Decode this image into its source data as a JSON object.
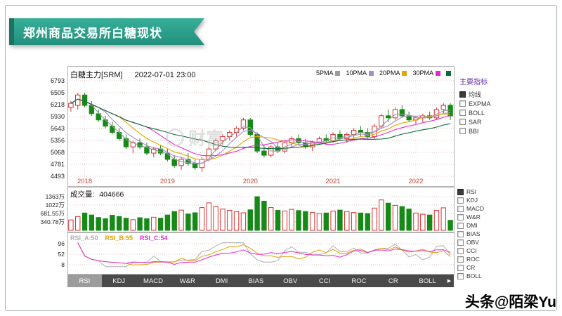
{
  "banner": {
    "title": "郑州商品交易所白糖现状"
  },
  "credit": "头条@陌梁Yu",
  "watermark": "财富",
  "icons": {
    "tab_scroll_right": "▶"
  },
  "indicator_panel": {
    "title": "主要指标",
    "items": [
      {
        "label": "均线",
        "checked": true
      },
      {
        "label": "EXPMA",
        "checked": false
      },
      {
        "label": "BOLL",
        "checked": false
      },
      {
        "label": "SAR",
        "checked": false
      },
      {
        "label": "BBI",
        "checked": false
      }
    ]
  },
  "oscillator_panel": {
    "items": [
      {
        "label": "RSI",
        "checked": true
      },
      {
        "label": "KDJ",
        "checked": false
      },
      {
        "label": "MACD",
        "checked": false
      },
      {
        "label": "W&R",
        "checked": false
      },
      {
        "label": "DMI",
        "checked": false
      },
      {
        "label": "BIAS",
        "checked": false
      },
      {
        "label": "OBV",
        "checked": false
      },
      {
        "label": "CCI",
        "checked": false
      },
      {
        "label": "ROC",
        "checked": false
      },
      {
        "label": "CR",
        "checked": false
      },
      {
        "label": "BOLL",
        "checked": false
      }
    ]
  },
  "tabs": {
    "selected": "RSI",
    "items": [
      "RSI",
      "KDJ",
      "MACD",
      "W&R",
      "DMI",
      "BIAS",
      "OBV",
      "CCI",
      "ROC",
      "CR",
      "BOLL"
    ]
  },
  "chart_data": {
    "type": "candlestick",
    "title": "白糖主力[SRM]",
    "datetime": "2022-07-01 23:00",
    "y_ticks": [
      6793,
      6505,
      6218,
      5930,
      5643,
      5356,
      5068,
      4781,
      4493
    ],
    "x_year_labels": [
      {
        "label": "2018",
        "index": 2
      },
      {
        "label": "2019",
        "index": 14
      },
      {
        "label": "2020",
        "index": 26
      },
      {
        "label": "2021",
        "index": 38
      },
      {
        "label": "2022",
        "index": 50
      }
    ],
    "ma_legend": [
      {
        "label": "5PMA",
        "color": "#9a9a9a",
        "draw_period": 3
      },
      {
        "label": "10PMA",
        "color": "#a58ccf",
        "draw_period": 5
      },
      {
        "label": "20PMA",
        "color": "#e0a800",
        "draw_period": 8
      },
      {
        "label": "30PMA",
        "color": "#e02ad0",
        "draw_period": 12
      },
      {
        "label": "",
        "color": "#0a6b3c",
        "draw_period": 20
      }
    ],
    "ohlc": [
      [
        6150,
        6300,
        6050,
        6250
      ],
      [
        6200,
        6500,
        6100,
        6450
      ],
      [
        6450,
        6505,
        6150,
        6200
      ],
      [
        6200,
        6300,
        5950,
        6000
      ],
      [
        6000,
        6100,
        5800,
        5850
      ],
      [
        5850,
        5950,
        5650,
        5700
      ],
      [
        5700,
        5800,
        5500,
        5550
      ],
      [
        5550,
        5650,
        5350,
        5400
      ],
      [
        5400,
        5500,
        5150,
        5200
      ],
      [
        5200,
        5350,
        5050,
        5300
      ],
      [
        5300,
        5400,
        5150,
        5200
      ],
      [
        5200,
        5300,
        5000,
        5050
      ],
      [
        5050,
        5200,
        4950,
        5150
      ],
      [
        5150,
        5250,
        5000,
        5050
      ],
      [
        5050,
        5150,
        4850,
        4900
      ],
      [
        4900,
        5000,
        4700,
        4750
      ],
      [
        4750,
        4950,
        4650,
        4900
      ],
      [
        4900,
        5050,
        4750,
        4800
      ],
      [
        4800,
        4900,
        4650,
        4700
      ],
      [
        4700,
        4950,
        4600,
        4900
      ],
      [
        4900,
        5200,
        4850,
        5150
      ],
      [
        5150,
        5400,
        5100,
        5350
      ],
      [
        5350,
        5500,
        5250,
        5450
      ],
      [
        5450,
        5600,
        5350,
        5550
      ],
      [
        5550,
        5700,
        5450,
        5650
      ],
      [
        5650,
        5900,
        5600,
        5850
      ],
      [
        5850,
        5900,
        5450,
        5500
      ],
      [
        5500,
        5550,
        5050,
        5100
      ],
      [
        5100,
        5250,
        4950,
        5000
      ],
      [
        5000,
        5250,
        4950,
        5200
      ],
      [
        5200,
        5300,
        5050,
        5100
      ],
      [
        5100,
        5350,
        5050,
        5300
      ],
      [
        5300,
        5450,
        5200,
        5400
      ],
      [
        5400,
        5500,
        5250,
        5300
      ],
      [
        5300,
        5400,
        5150,
        5200
      ],
      [
        5200,
        5350,
        5100,
        5300
      ],
      [
        5300,
        5450,
        5250,
        5400
      ],
      [
        5400,
        5500,
        5300,
        5350
      ],
      [
        5350,
        5550,
        5300,
        5500
      ],
      [
        5500,
        5600,
        5350,
        5400
      ],
      [
        5400,
        5550,
        5300,
        5500
      ],
      [
        5500,
        5650,
        5400,
        5600
      ],
      [
        5600,
        5700,
        5450,
        5550
      ],
      [
        5550,
        5650,
        5400,
        5450
      ],
      [
        5450,
        5750,
        5400,
        5700
      ],
      [
        5700,
        6000,
        5650,
        5950
      ],
      [
        5950,
        6100,
        5800,
        5900
      ],
      [
        5900,
        6150,
        5850,
        6100
      ],
      [
        6100,
        6200,
        5900,
        5950
      ],
      [
        5950,
        6050,
        5800,
        5850
      ],
      [
        5850,
        5950,
        5750,
        5900
      ],
      [
        5900,
        6000,
        5800,
        5950
      ],
      [
        5950,
        6050,
        5850,
        5900
      ],
      [
        5900,
        6150,
        5850,
        6100
      ],
      [
        6100,
        6250,
        6000,
        6200
      ],
      [
        6200,
        6250,
        5850,
        5950
      ]
    ],
    "volume": {
      "label": "成交量:",
      "current": "404666",
      "y_ticks": [
        {
          "label": "1363万",
          "value": 1363
        },
        {
          "label": "1022万",
          "value": 1022
        },
        {
          "label": "681.55万",
          "value": 681.55
        },
        {
          "label": "340.78万",
          "value": 340.78
        }
      ],
      "values": [
        420,
        560,
        700,
        620,
        520,
        470,
        610,
        560,
        490,
        430,
        510,
        470,
        530,
        490,
        620,
        760,
        820,
        660,
        710,
        920,
        1110,
        960,
        860,
        810,
        760,
        710,
        830,
        1360,
        1180,
        920,
        810,
        780,
        850,
        800,
        760,
        720,
        680,
        700,
        780,
        820,
        760,
        720,
        700,
        680,
        900,
        1230,
        1100,
        1010,
        960,
        860,
        700,
        650,
        620,
        810,
        910,
        405
      ]
    },
    "rsi": {
      "labels": [
        {
          "text": "RSI_A:50",
          "color": "#b0b0b0"
        },
        {
          "text": "RSI_B:55",
          "color": "#e0a000"
        },
        {
          "text": "RSI_C:54",
          "color": "#e02ad0"
        }
      ],
      "y_ticks": [
        96,
        52,
        8
      ],
      "series": [
        {
          "name": "RSI_A",
          "period": 4,
          "color": "#b0b0b0"
        },
        {
          "name": "RSI_B",
          "period": 8,
          "color": "#e0a000"
        },
        {
          "name": "RSI_C",
          "period": 14,
          "color": "#e02ad0"
        }
      ]
    },
    "colors": {
      "up": "#d93030",
      "down": "#168a16",
      "grid": "#dcc3c3",
      "axis_year": "#cc4433"
    }
  }
}
